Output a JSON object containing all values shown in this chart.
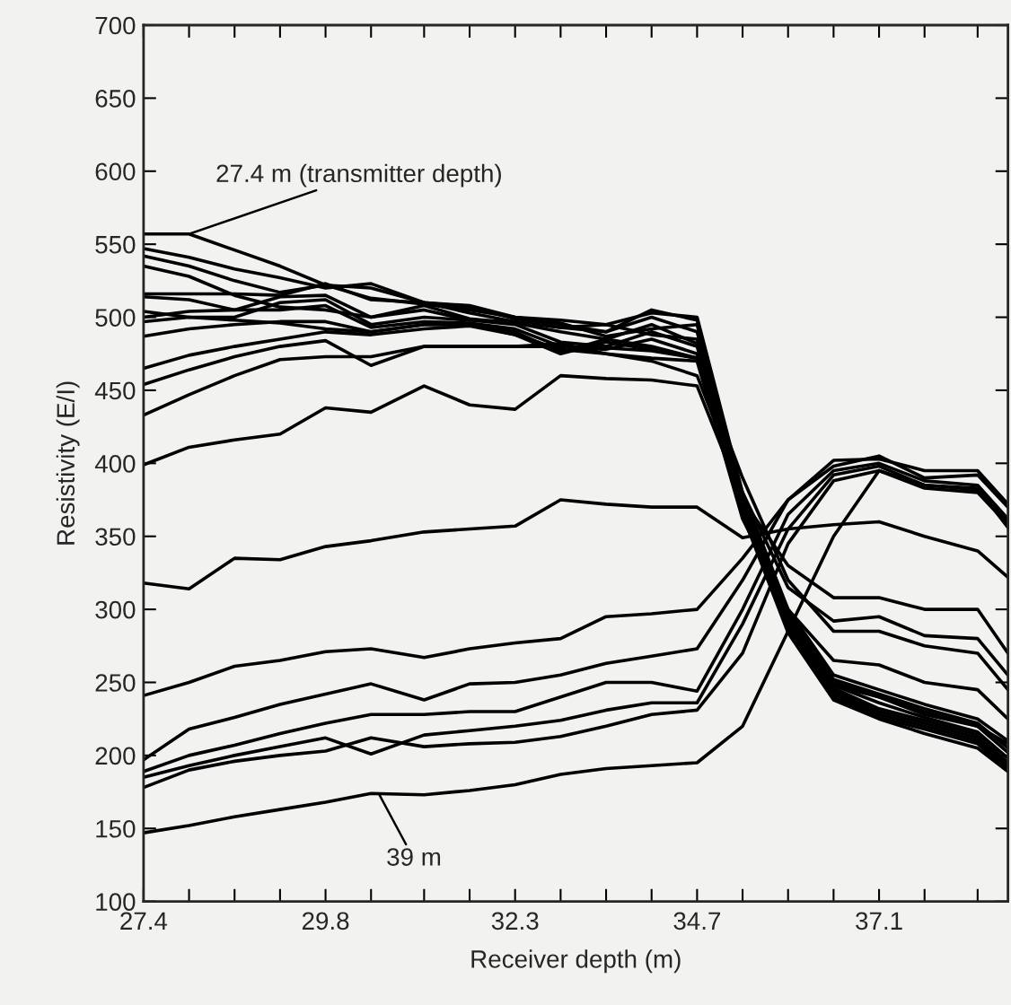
{
  "chart_data": {
    "type": "line",
    "xlabel": "Receiver depth (m)",
    "ylabel": "Resistivity (E/I)",
    "x": [
      27.4,
      28.0,
      28.6,
      29.2,
      29.8,
      30.4,
      31.1,
      31.7,
      32.3,
      32.9,
      33.5,
      34.1,
      34.7,
      35.3,
      35.9,
      36.5,
      37.1,
      37.7,
      38.4,
      38.8
    ],
    "xlim": [
      27.4,
      38.8
    ],
    "xticks": [
      27.4,
      {
        "value": 28.0,
        "label": null
      },
      {
        "value": 28.6,
        "label": null
      },
      {
        "value": 29.2,
        "label": null
      },
      29.8,
      {
        "value": 30.4,
        "label": null
      },
      {
        "value": 31.1,
        "label": null
      },
      {
        "value": 31.7,
        "label": null
      },
      32.3,
      {
        "value": 32.9,
        "label": null
      },
      {
        "value": 33.5,
        "label": null
      },
      {
        "value": 34.1,
        "label": null
      },
      34.7,
      {
        "value": 35.3,
        "label": null
      },
      {
        "value": 35.9,
        "label": null
      },
      {
        "value": 36.5,
        "label": null
      },
      37.1,
      {
        "value": 37.7,
        "label": null
      },
      {
        "value": 38.4,
        "label": null
      }
    ],
    "ylim": [
      100,
      700
    ],
    "yticks": [
      100,
      150,
      200,
      250,
      300,
      350,
      400,
      450,
      500,
      550,
      600,
      650,
      700
    ],
    "annotations": [
      {
        "text": "27.4 m (transmitter depth)",
        "x": 28.0,
        "y": 557
      },
      {
        "text": "39 m",
        "x": 30.5,
        "y": 174
      }
    ],
    "series": [
      {
        "color": "#000000",
        "values": [
          557,
          557,
          546,
          535,
          522,
          520,
          510,
          508,
          500,
          498,
          495,
          503,
          500,
          380,
          300,
          255,
          245,
          235,
          225,
          210
        ]
      },
      {
        "color": "#000000",
        "values": [
          547,
          541,
          533,
          527,
          520,
          523,
          510,
          507,
          499,
          495,
          490,
          505,
          498,
          378,
          298,
          252,
          242,
          232,
          222,
          205
        ]
      },
      {
        "color": "#000000",
        "values": [
          542,
          535,
          525,
          517,
          522,
          513,
          509,
          505,
          500,
          496,
          487,
          492,
          495,
          376,
          296,
          250,
          240,
          230,
          220,
          202
        ]
      },
      {
        "color": "#000000",
        "values": [
          535,
          528,
          515,
          507,
          505,
          500,
          505,
          498,
          497,
          493,
          490,
          500,
          490,
          374,
          294,
          248,
          236,
          226,
          216,
          198
        ]
      },
      {
        "color": "#000000",
        "values": [
          516,
          516,
          516,
          515,
          523,
          512,
          510,
          503,
          497,
          493,
          495,
          488,
          485,
          372,
          292,
          246,
          232,
          224,
          214,
          195
        ]
      },
      {
        "color": "#000000",
        "values": [
          514,
          512,
          505,
          514,
          515,
          500,
          508,
          499,
          496,
          490,
          485,
          495,
          482,
          370,
          290,
          244,
          230,
          222,
          212,
          193
        ]
      },
      {
        "color": "#000000",
        "values": [
          504,
          500,
          500,
          510,
          512,
          495,
          500,
          498,
          495,
          483,
          480,
          490,
          480,
          368,
          288,
          242,
          228,
          220,
          210,
          192
        ]
      },
      {
        "color": "#000000",
        "values": [
          500,
          504,
          505,
          505,
          508,
          493,
          497,
          496,
          492,
          480,
          478,
          485,
          475,
          366,
          286,
          240,
          226,
          218,
          208,
          190
        ]
      },
      {
        "color": "#000000",
        "values": [
          497,
          500,
          498,
          496,
          492,
          490,
          495,
          495,
          490,
          476,
          485,
          480,
          472,
          365,
          284,
          238,
          225,
          215,
          205,
          189
        ]
      },
      {
        "color": "#000000",
        "values": [
          487,
          492,
          495,
          497,
          497,
          490,
          495,
          495,
          488,
          475,
          483,
          478,
          472,
          364,
          290,
          248,
          240,
          228,
          220,
          208
        ]
      },
      {
        "color": "#000000",
        "values": [
          465,
          474,
          480,
          485,
          490,
          488,
          492,
          494,
          488,
          478,
          475,
          472,
          470,
          362,
          300,
          265,
          262,
          250,
          245,
          225
        ]
      },
      {
        "color": "#000000",
        "values": [
          454,
          464,
          473,
          480,
          484,
          467,
          480,
          480,
          480,
          480,
          479,
          477,
          472,
          390,
          320,
          285,
          285,
          275,
          270,
          245
        ]
      },
      {
        "color": "#000000",
        "values": [
          433,
          447,
          460,
          471,
          473,
          473,
          480,
          480,
          480,
          482,
          475,
          470,
          460,
          380,
          315,
          292,
          295,
          282,
          280,
          255
        ]
      },
      {
        "color": "#000000",
        "values": [
          399,
          411,
          416,
          420,
          438,
          435,
          453,
          440,
          437,
          460,
          458,
          457,
          453,
          375,
          330,
          308,
          308,
          300,
          300,
          270
        ]
      },
      {
        "color": "#000000",
        "values": [
          318,
          314,
          335,
          334,
          343,
          347,
          353,
          355,
          357,
          375,
          372,
          370,
          370,
          349,
          355,
          358,
          360,
          350,
          340,
          322
        ]
      },
      {
        "color": "#000000",
        "values": [
          241,
          250,
          261,
          265,
          271,
          273,
          267,
          273,
          277,
          280,
          295,
          297,
          300,
          335,
          375,
          402,
          403,
          395,
          395,
          372
        ]
      },
      {
        "color": "#000000",
        "values": [
          197,
          218,
          226,
          235,
          242,
          249,
          238,
          249,
          250,
          255,
          263,
          268,
          273,
          320,
          375,
          398,
          405,
          390,
          392,
          370
        ]
      },
      {
        "color": "#000000",
        "values": [
          189,
          200,
          207,
          215,
          222,
          228,
          228,
          230,
          230,
          240,
          250,
          250,
          244,
          300,
          365,
          395,
          400,
          388,
          385,
          362
        ]
      },
      {
        "color": "#000000",
        "values": [
          185,
          193,
          200,
          206,
          212,
          201,
          214,
          217,
          220,
          224,
          231,
          236,
          236,
          290,
          355,
          392,
          398,
          385,
          382,
          360
        ]
      },
      {
        "color": "#000000",
        "values": [
          178,
          190,
          196,
          200,
          203,
          212,
          206,
          208,
          209,
          213,
          220,
          228,
          231,
          270,
          345,
          388,
          395,
          383,
          380,
          358
        ]
      },
      {
        "color": "#000000",
        "values": [
          147,
          152,
          158,
          163,
          168,
          174,
          173,
          176,
          180,
          187,
          191,
          193,
          195,
          220,
          285,
          350,
          395,
          385,
          383,
          356
        ]
      }
    ]
  }
}
